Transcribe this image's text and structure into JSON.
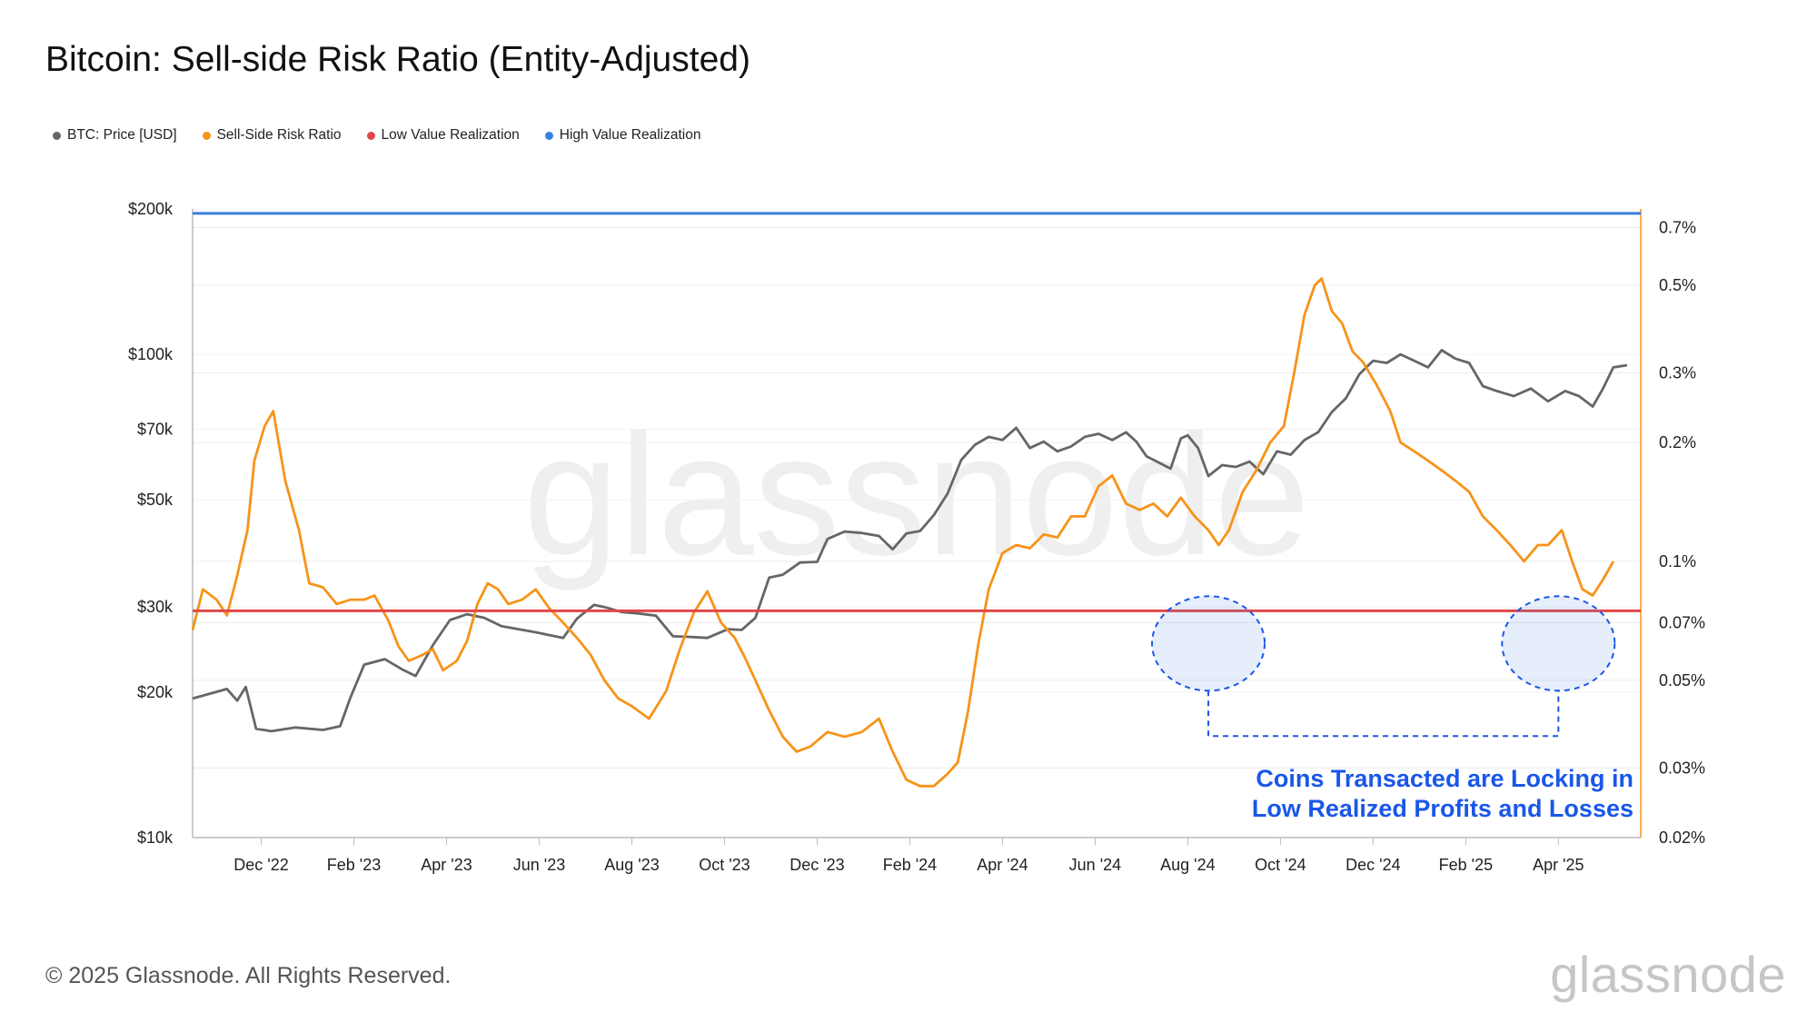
{
  "title": "Bitcoin: Sell-side Risk Ratio (Entity-Adjusted)",
  "legend": [
    {
      "label": "BTC: Price [USD]",
      "color": "#666666"
    },
    {
      "label": "Sell-Side Risk Ratio",
      "color": "#f7931a"
    },
    {
      "label": "Low Value Realization",
      "color": "#e04848"
    },
    {
      "label": "High Value Realization",
      "color": "#3a7fe0"
    }
  ],
  "copyright": "© 2025 Glassnode. All Rights Reserved.",
  "brand": "glassnode",
  "watermark": "glassnode",
  "chart_data": {
    "type": "line",
    "title": "Bitcoin: Sell-side Risk Ratio (Entity-Adjusted)",
    "x_ticks": [
      "Dec '22",
      "Feb '23",
      "Apr '23",
      "Jun '23",
      "Aug '23",
      "Oct '23",
      "Dec '23",
      "Feb '24",
      "Apr '24",
      "Jun '24",
      "Aug '24",
      "Oct '24",
      "Dec '24",
      "Feb '25",
      "Apr '25"
    ],
    "x_range": [
      "Oct '22",
      "May '25"
    ],
    "y_left": {
      "label": "BTC: Price [USD]",
      "scale": "log",
      "range": [
        10000,
        200000
      ],
      "ticks": [
        10000,
        20000,
        30000,
        50000,
        70000,
        100000,
        200000
      ],
      "tick_labels": [
        "$10k",
        "$20k",
        "$30k",
        "$50k",
        "$70k",
        "$100k",
        "$200k"
      ]
    },
    "y_right": {
      "label": "Sell-Side Risk Ratio",
      "scale": "log",
      "range": [
        0.02,
        0.78
      ],
      "ticks": [
        0.02,
        0.03,
        0.05,
        0.07,
        0.1,
        0.2,
        0.3,
        0.5,
        0.7
      ],
      "tick_labels": [
        "0.02%",
        "0.03%",
        "0.05%",
        "0.07%",
        "0.1%",
        "0.2%",
        "0.3%",
        "0.5%",
        "0.7%"
      ]
    },
    "series": [
      {
        "name": "BTC: Price [USD]",
        "axis": "left",
        "color": "#666666",
        "points": [
          [
            0,
            19400
          ],
          [
            1,
            20300
          ],
          [
            1.3,
            19200
          ],
          [
            1.55,
            20500
          ],
          [
            1.85,
            16800
          ],
          [
            2.3,
            16600
          ],
          [
            3,
            16900
          ],
          [
            3.8,
            16700
          ],
          [
            4.3,
            17000
          ],
          [
            4.6,
            19500
          ],
          [
            5,
            22800
          ],
          [
            5.6,
            23400
          ],
          [
            6.1,
            22300
          ],
          [
            6.5,
            21600
          ],
          [
            7,
            25000
          ],
          [
            7.5,
            28200
          ],
          [
            8,
            29000
          ],
          [
            8.5,
            28500
          ],
          [
            9,
            27400
          ],
          [
            10,
            26600
          ],
          [
            10.8,
            25900
          ],
          [
            11.2,
            28400
          ],
          [
            11.7,
            30300
          ],
          [
            12,
            30000
          ],
          [
            12.5,
            29300
          ],
          [
            13,
            29100
          ],
          [
            13.5,
            28800
          ],
          [
            14,
            26100
          ],
          [
            14.6,
            26000
          ],
          [
            15,
            25900
          ],
          [
            15.6,
            27000
          ],
          [
            16,
            26900
          ],
          [
            16.4,
            28500
          ],
          [
            16.8,
            34500
          ],
          [
            17.2,
            35000
          ],
          [
            17.7,
            37100
          ],
          [
            18.2,
            37200
          ],
          [
            18.5,
            41500
          ],
          [
            19,
            43000
          ],
          [
            19.5,
            42700
          ],
          [
            20,
            42100
          ],
          [
            20.4,
            39500
          ],
          [
            20.8,
            42600
          ],
          [
            21.2,
            43100
          ],
          [
            21.6,
            46500
          ],
          [
            22,
            51500
          ],
          [
            22.4,
            60500
          ],
          [
            22.8,
            65000
          ],
          [
            23.2,
            67500
          ],
          [
            23.6,
            66500
          ],
          [
            24,
            70500
          ],
          [
            24.4,
            64000
          ],
          [
            24.8,
            66000
          ],
          [
            25.2,
            63000
          ],
          [
            25.6,
            64500
          ],
          [
            26,
            67500
          ],
          [
            26.4,
            68500
          ],
          [
            26.8,
            66500
          ],
          [
            27.2,
            69000
          ],
          [
            27.5,
            66000
          ],
          [
            27.8,
            61500
          ],
          [
            28.1,
            60000
          ],
          [
            28.5,
            58000
          ],
          [
            28.8,
            67000
          ],
          [
            29,
            68000
          ],
          [
            29.3,
            64000
          ],
          [
            29.6,
            56000
          ],
          [
            30,
            59000
          ],
          [
            30.4,
            58500
          ],
          [
            30.8,
            60000
          ],
          [
            31.2,
            56500
          ],
          [
            31.6,
            63000
          ],
          [
            32,
            62000
          ],
          [
            32.4,
            66500
          ],
          [
            32.8,
            69000
          ],
          [
            33.2,
            76000
          ],
          [
            33.6,
            81000
          ],
          [
            34,
            91000
          ],
          [
            34.4,
            97000
          ],
          [
            34.8,
            96000
          ],
          [
            35.2,
            100000
          ],
          [
            35.6,
            97000
          ],
          [
            36,
            94000
          ],
          [
            36.4,
            102000
          ],
          [
            36.8,
            98000
          ],
          [
            37.2,
            96000
          ],
          [
            37.6,
            86000
          ],
          [
            38,
            84000
          ],
          [
            38.5,
            82000
          ],
          [
            39,
            85000
          ],
          [
            39.5,
            80000
          ],
          [
            40,
            84000
          ],
          [
            40.4,
            82000
          ],
          [
            40.8,
            78000
          ],
          [
            41.1,
            85000
          ],
          [
            41.4,
            94000
          ],
          [
            41.8,
            95000
          ]
        ]
      },
      {
        "name": "Sell-Side Risk Ratio",
        "axis": "right",
        "color": "#f7931a",
        "points": [
          [
            0,
            0.067
          ],
          [
            0.3,
            0.085
          ],
          [
            0.7,
            0.08
          ],
          [
            1,
            0.073
          ],
          [
            1.3,
            0.092
          ],
          [
            1.6,
            0.12
          ],
          [
            1.8,
            0.18
          ],
          [
            2.1,
            0.22
          ],
          [
            2.35,
            0.24
          ],
          [
            2.7,
            0.16
          ],
          [
            3.1,
            0.12
          ],
          [
            3.4,
            0.088
          ],
          [
            3.8,
            0.086
          ],
          [
            4.2,
            0.078
          ],
          [
            4.6,
            0.08
          ],
          [
            5,
            0.08
          ],
          [
            5.3,
            0.082
          ],
          [
            5.7,
            0.071
          ],
          [
            6,
            0.061
          ],
          [
            6.3,
            0.056
          ],
          [
            6.7,
            0.058
          ],
          [
            7,
            0.06
          ],
          [
            7.3,
            0.053
          ],
          [
            7.7,
            0.056
          ],
          [
            8,
            0.063
          ],
          [
            8.3,
            0.078
          ],
          [
            8.6,
            0.088
          ],
          [
            8.9,
            0.085
          ],
          [
            9.2,
            0.078
          ],
          [
            9.6,
            0.08
          ],
          [
            10,
            0.085
          ],
          [
            10.4,
            0.076
          ],
          [
            10.8,
            0.07
          ],
          [
            11.2,
            0.064
          ],
          [
            11.6,
            0.058
          ],
          [
            12,
            0.05
          ],
          [
            12.4,
            0.045
          ],
          [
            12.8,
            0.043
          ],
          [
            13.3,
            0.04
          ],
          [
            13.8,
            0.047
          ],
          [
            14.2,
            0.06
          ],
          [
            14.6,
            0.074
          ],
          [
            15,
            0.084
          ],
          [
            15.4,
            0.07
          ],
          [
            15.8,
            0.064
          ],
          [
            16.1,
            0.057
          ],
          [
            16.4,
            0.05
          ],
          [
            16.8,
            0.042
          ],
          [
            17.2,
            0.036
          ],
          [
            17.6,
            0.033
          ],
          [
            18,
            0.034
          ],
          [
            18.5,
            0.037
          ],
          [
            19,
            0.036
          ],
          [
            19.5,
            0.037
          ],
          [
            20,
            0.04
          ],
          [
            20.4,
            0.033
          ],
          [
            20.8,
            0.028
          ],
          [
            21.2,
            0.027
          ],
          [
            21.6,
            0.027
          ],
          [
            22,
            0.029
          ],
          [
            22.3,
            0.031
          ],
          [
            22.6,
            0.042
          ],
          [
            22.9,
            0.062
          ],
          [
            23.2,
            0.085
          ],
          [
            23.6,
            0.105
          ],
          [
            24,
            0.11
          ],
          [
            24.4,
            0.108
          ],
          [
            24.8,
            0.117
          ],
          [
            25.2,
            0.115
          ],
          [
            25.6,
            0.13
          ],
          [
            26,
            0.13
          ],
          [
            26.4,
            0.155
          ],
          [
            26.8,
            0.165
          ],
          [
            27.2,
            0.14
          ],
          [
            27.6,
            0.135
          ],
          [
            28,
            0.14
          ],
          [
            28.4,
            0.13
          ],
          [
            28.8,
            0.145
          ],
          [
            29.2,
            0.13
          ],
          [
            29.6,
            0.12
          ],
          [
            29.9,
            0.11
          ],
          [
            30.2,
            0.12
          ],
          [
            30.6,
            0.15
          ],
          [
            31,
            0.17
          ],
          [
            31.4,
            0.2
          ],
          [
            31.8,
            0.22
          ],
          [
            32.1,
            0.3
          ],
          [
            32.4,
            0.42
          ],
          [
            32.7,
            0.5
          ],
          [
            32.9,
            0.52
          ],
          [
            33.2,
            0.43
          ],
          [
            33.5,
            0.4
          ],
          [
            33.8,
            0.34
          ],
          [
            34.1,
            0.32
          ],
          [
            34.5,
            0.28
          ],
          [
            34.9,
            0.24
          ],
          [
            35.2,
            0.2
          ],
          [
            35.6,
            0.19
          ],
          [
            36,
            0.18
          ],
          [
            36.4,
            0.17
          ],
          [
            36.8,
            0.16
          ],
          [
            37.2,
            0.15
          ],
          [
            37.6,
            0.13
          ],
          [
            38,
            0.12
          ],
          [
            38.4,
            0.11
          ],
          [
            38.8,
            0.1
          ],
          [
            39.2,
            0.11
          ],
          [
            39.5,
            0.11
          ],
          [
            39.9,
            0.12
          ],
          [
            40.2,
            0.1
          ],
          [
            40.5,
            0.085
          ],
          [
            40.8,
            0.082
          ],
          [
            41.1,
            0.09
          ],
          [
            41.4,
            0.1
          ]
        ]
      },
      {
        "name": "Low Value Realization",
        "axis": "right",
        "color": "#e04848",
        "constant": 0.075
      },
      {
        "name": "High Value Realization",
        "axis": "right",
        "color": "#3a7fe0",
        "constant": 0.76
      }
    ],
    "annotation": {
      "lines": [
        "Coins Transacted are Locking in",
        "Low Realized Profits and Losses"
      ],
      "color": "#1a57e8"
    }
  }
}
